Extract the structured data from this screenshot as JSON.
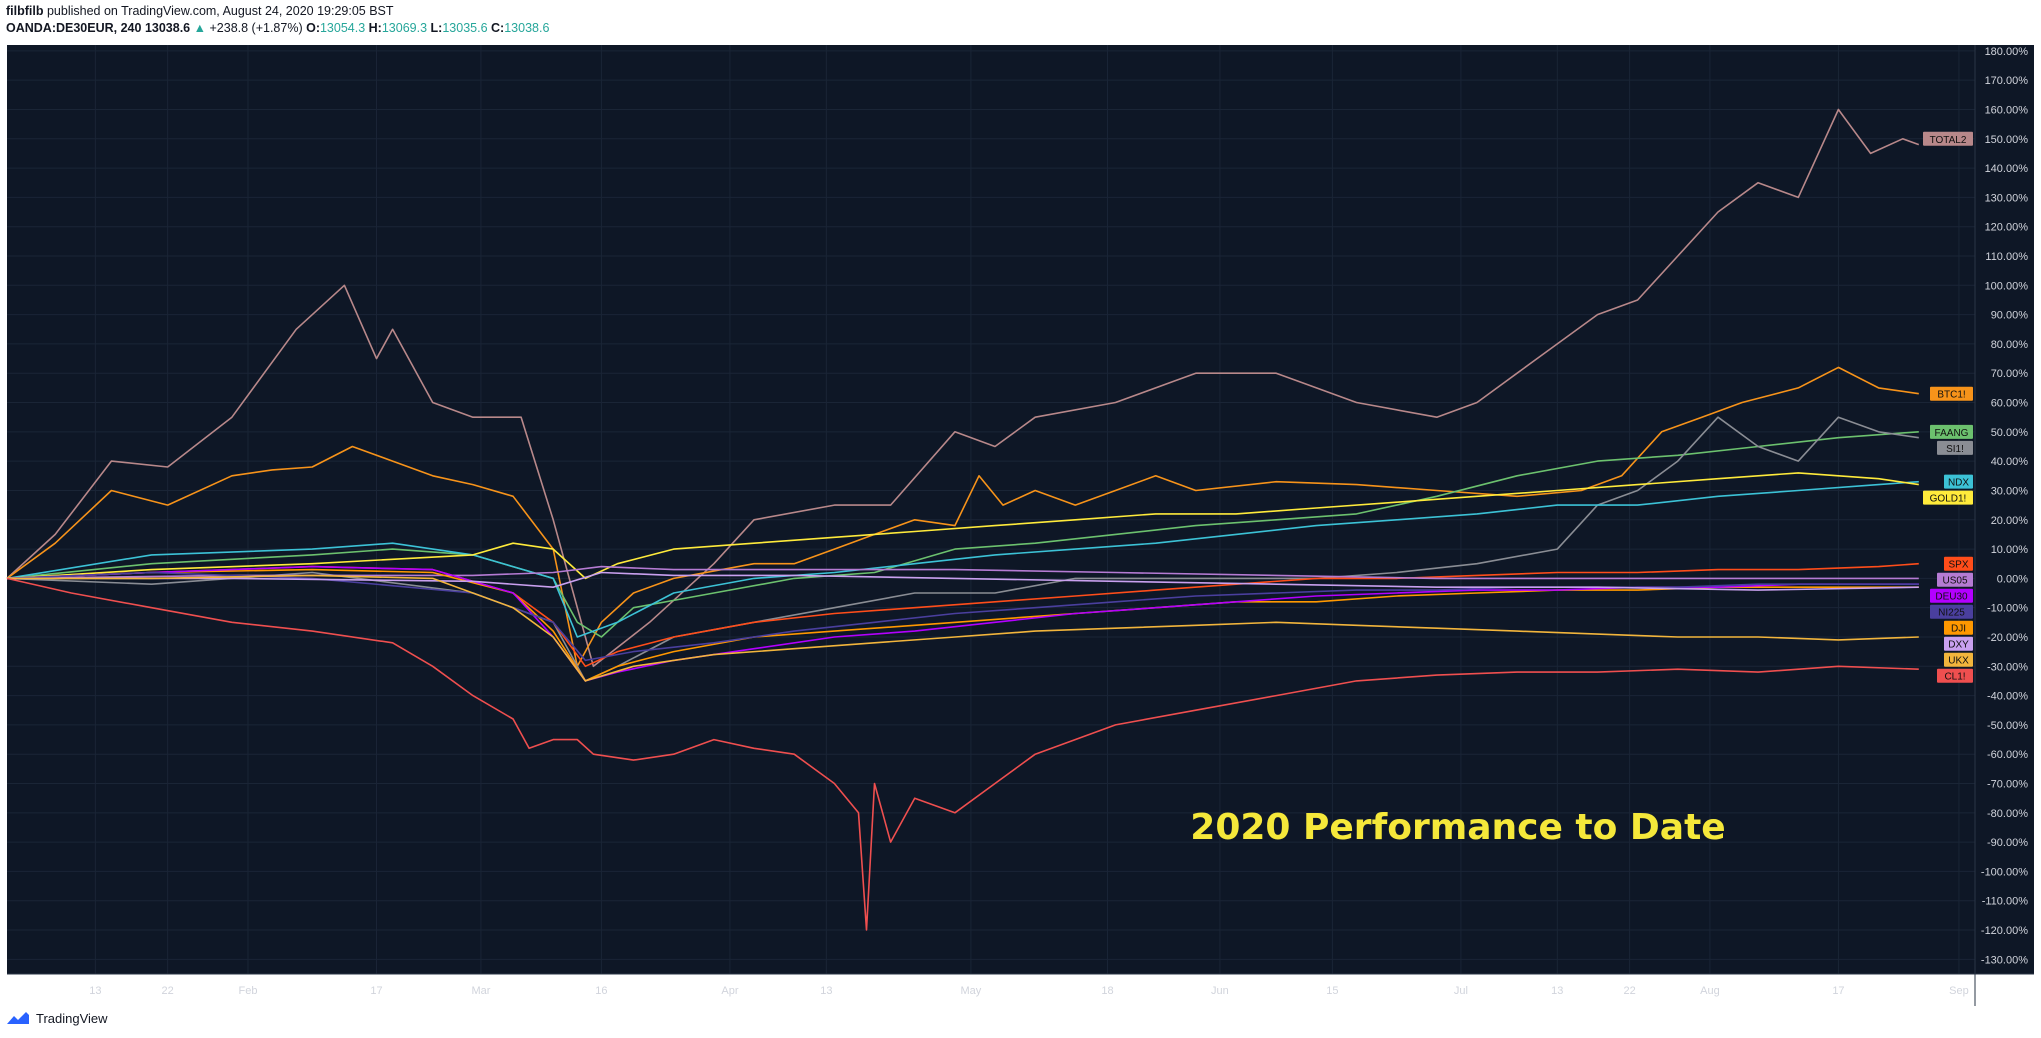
{
  "header": {
    "author": "filbfilb",
    "published_text": "published on TradingView.com, August 24, 2020 19:29:05 BST",
    "symbol": "OANDA:DE30EUR, 240",
    "last": "13038.6",
    "change": "+238.8 (+1.87%)",
    "open_label": "O:",
    "open": "13054.3",
    "high_label": "H:",
    "high": "13069.3",
    "low_label": "L:",
    "low": "13035.6",
    "close_label": "C:",
    "close": "13038.6"
  },
  "footer": {
    "brand": "TradingView"
  },
  "colors": {
    "background": "#0e1726",
    "grid": "#1a2536",
    "axis_text": "#d1d4dc",
    "annotation": "#f5e83a"
  },
  "chart_data": {
    "type": "line",
    "annotation": "2020 Performance to Date",
    "x_ticks": [
      "13",
      "22",
      "Feb",
      "17",
      "Mar",
      "16",
      "Apr",
      "13",
      "May",
      "18",
      "Jun",
      "15",
      "Jul",
      "13",
      "22",
      "Aug",
      "17",
      "Sep"
    ],
    "x_tick_days": [
      13,
      22,
      32,
      48,
      61,
      76,
      92,
      104,
      122,
      139,
      153,
      167,
      183,
      195,
      204,
      214,
      230,
      245
    ],
    "x_range_days": [
      2,
      247
    ],
    "ylim": [
      -135,
      182
    ],
    "y_ticks": [
      180,
      170,
      160,
      150,
      140,
      130,
      120,
      110,
      100,
      90,
      80,
      70,
      60,
      50,
      40,
      30,
      20,
      10,
      0,
      -10,
      -20,
      -30,
      -40,
      -50,
      -60,
      -70,
      -80,
      -90,
      -100,
      -110,
      -120,
      -130
    ],
    "y_unit": "%",
    "series": [
      {
        "name": "TOTAL2",
        "color": "#b8888a",
        "label_value": 150,
        "x": [
          2,
          8,
          15,
          22,
          30,
          38,
          44,
          48,
          50,
          55,
          60,
          66,
          70,
          75,
          82,
          90,
          95,
          105,
          112,
          120,
          125,
          130,
          140,
          150,
          160,
          170,
          180,
          185,
          190,
          195,
          200,
          205,
          210,
          215,
          220,
          225,
          230,
          234,
          238,
          240
        ],
        "y": [
          0,
          15,
          40,
          38,
          55,
          85,
          100,
          75,
          85,
          60,
          55,
          55,
          20,
          -30,
          -15,
          5,
          20,
          25,
          25,
          50,
          45,
          55,
          60,
          70,
          70,
          60,
          55,
          60,
          70,
          80,
          90,
          95,
          110,
          125,
          135,
          130,
          160,
          145,
          150,
          148
        ]
      },
      {
        "name": "BTC1!",
        "color": "#f7931a",
        "label_value": 63,
        "x": [
          2,
          8,
          15,
          22,
          30,
          35,
          40,
          45,
          50,
          55,
          60,
          65,
          70,
          73,
          76,
          80,
          85,
          95,
          100,
          105,
          110,
          115,
          120,
          123,
          126,
          130,
          135,
          140,
          145,
          150,
          160,
          170,
          180,
          190,
          198,
          203,
          208,
          213,
          218,
          225,
          230,
          235,
          240
        ],
        "y": [
          0,
          12,
          30,
          25,
          35,
          37,
          38,
          45,
          40,
          35,
          32,
          28,
          10,
          -30,
          -15,
          -5,
          0,
          5,
          5,
          10,
          15,
          20,
          18,
          35,
          25,
          30,
          25,
          30,
          35,
          30,
          33,
          32,
          30,
          28,
          30,
          35,
          50,
          55,
          60,
          65,
          72,
          65,
          63
        ]
      },
      {
        "name": "FAANG",
        "color": "#6cc16e",
        "label_value": 50,
        "x": [
          2,
          20,
          40,
          50,
          60,
          70,
          73,
          76,
          80,
          90,
          100,
          110,
          120,
          130,
          140,
          150,
          160,
          170,
          180,
          190,
          200,
          210,
          220,
          230,
          240
        ],
        "y": [
          0,
          5,
          8,
          10,
          8,
          0,
          -15,
          -20,
          -10,
          -5,
          0,
          2,
          10,
          12,
          15,
          18,
          20,
          22,
          28,
          35,
          40,
          42,
          45,
          48,
          50
        ]
      },
      {
        "name": "SI1!",
        "color": "#8a8d94",
        "label_value": 47,
        "x": [
          2,
          20,
          40,
          60,
          70,
          74,
          78,
          85,
          95,
          105,
          115,
          125,
          135,
          145,
          155,
          165,
          175,
          185,
          195,
          200,
          205,
          210,
          215,
          220,
          225,
          230,
          235,
          240
        ],
        "y": [
          0,
          -2,
          2,
          -5,
          -15,
          -35,
          -30,
          -20,
          -15,
          -10,
          -5,
          -5,
          0,
          0,
          0,
          0,
          2,
          5,
          10,
          25,
          30,
          40,
          55,
          45,
          40,
          55,
          50,
          48
        ]
      },
      {
        "name": "NDX",
        "color": "#3cc2d6",
        "label_value": 33,
        "x": [
          2,
          20,
          40,
          50,
          60,
          70,
          73,
          78,
          85,
          95,
          105,
          115,
          125,
          135,
          145,
          155,
          165,
          175,
          185,
          195,
          205,
          215,
          225,
          235,
          240
        ],
        "y": [
          0,
          8,
          10,
          12,
          8,
          0,
          -20,
          -15,
          -5,
          0,
          2,
          5,
          8,
          10,
          12,
          15,
          18,
          20,
          22,
          25,
          25,
          28,
          30,
          32,
          33
        ]
      },
      {
        "name": "GOLD1!",
        "color": "#ffeb3b",
        "label_value": 32,
        "x": [
          2,
          20,
          40,
          60,
          65,
          70,
          74,
          78,
          85,
          95,
          105,
          115,
          125,
          135,
          145,
          155,
          165,
          175,
          185,
          195,
          205,
          215,
          225,
          235,
          240
        ],
        "y": [
          0,
          3,
          5,
          8,
          12,
          10,
          0,
          5,
          10,
          12,
          14,
          16,
          18,
          20,
          22,
          22,
          24,
          26,
          28,
          30,
          32,
          34,
          36,
          34,
          32
        ]
      },
      {
        "name": "SPX",
        "color": "#ff4d1a",
        "label_value": 5,
        "x": [
          2,
          20,
          40,
          55,
          65,
          70,
          74,
          78,
          85,
          95,
          105,
          115,
          125,
          135,
          145,
          155,
          165,
          175,
          185,
          195,
          205,
          215,
          225,
          235,
          240
        ],
        "y": [
          0,
          2,
          4,
          3,
          -5,
          -15,
          -30,
          -25,
          -20,
          -15,
          -12,
          -10,
          -8,
          -6,
          -4,
          -2,
          0,
          0,
          1,
          2,
          2,
          3,
          3,
          4,
          5
        ]
      },
      {
        "name": "US05",
        "color": "#b57bd3",
        "label_value": 0,
        "x": [
          2,
          30,
          60,
          70,
          76,
          85,
          100,
          120,
          140,
          160,
          180,
          200,
          220,
          240
        ],
        "y": [
          0,
          1,
          1,
          2,
          4,
          3,
          3,
          3,
          2,
          1,
          0,
          0,
          0,
          0
        ]
      },
      {
        "name": "DJI",
        "color": "#ff9800",
        "label_value": -3,
        "x": [
          2,
          20,
          40,
          55,
          65,
          70,
          74,
          78,
          85,
          95,
          105,
          115,
          125,
          135,
          145,
          155,
          165,
          175,
          185,
          195,
          205,
          215,
          225,
          235,
          240
        ],
        "y": [
          0,
          2,
          3,
          2,
          -5,
          -18,
          -35,
          -30,
          -25,
          -20,
          -18,
          -16,
          -14,
          -12,
          -10,
          -8,
          -8,
          -6,
          -5,
          -4,
          -4,
          -3,
          -3,
          -3,
          -3
        ]
      },
      {
        "name": "DEU30",
        "color": "#b300ff",
        "label_value": -2,
        "x": [
          2,
          20,
          40,
          55,
          65,
          70,
          74,
          78,
          85,
          95,
          105,
          115,
          125,
          135,
          145,
          155,
          165,
          175,
          185,
          195,
          205,
          215,
          225,
          235,
          240
        ],
        "y": [
          0,
          2,
          4,
          3,
          -5,
          -20,
          -35,
          -32,
          -28,
          -24,
          -20,
          -18,
          -15,
          -12,
          -10,
          -8,
          -6,
          -5,
          -4,
          -4,
          -3,
          -3,
          -2,
          -2,
          -2
        ]
      },
      {
        "name": "NI225",
        "color": "#4a3f9e",
        "label_value": -2,
        "x": [
          2,
          20,
          40,
          60,
          70,
          74,
          80,
          90,
          100,
          110,
          120,
          130,
          140,
          150,
          160,
          170,
          180,
          190,
          200,
          210,
          220,
          230,
          240
        ],
        "y": [
          0,
          2,
          0,
          -5,
          -15,
          -28,
          -25,
          -22,
          -18,
          -15,
          -12,
          -10,
          -8,
          -6,
          -5,
          -4,
          -4,
          -3,
          -3,
          -3,
          -2,
          -2,
          -2
        ]
      },
      {
        "name": "DXY",
        "color": "#c9a0ef",
        "label_value": -3,
        "x": [
          2,
          30,
          60,
          70,
          76,
          85,
          100,
          120,
          140,
          160,
          180,
          200,
          220,
          240
        ],
        "y": [
          0,
          0,
          -1,
          -3,
          2,
          1,
          1,
          0,
          -1,
          -2,
          -3,
          -3,
          -4,
          -3
        ]
      },
      {
        "name": "UKX",
        "color": "#f2b53c",
        "label_value": -20,
        "x": [
          2,
          20,
          40,
          55,
          65,
          70,
          74,
          80,
          90,
          100,
          110,
          120,
          130,
          140,
          150,
          160,
          170,
          180,
          190,
          200,
          210,
          220,
          230,
          240
        ],
        "y": [
          0,
          0,
          1,
          0,
          -10,
          -20,
          -35,
          -30,
          -26,
          -24,
          -22,
          -20,
          -18,
          -17,
          -16,
          -15,
          -16,
          -17,
          -18,
          -19,
          -20,
          -20,
          -21,
          -20
        ]
      },
      {
        "name": "CL1!",
        "color": "#ef4f4f",
        "label_value": -31,
        "x": [
          2,
          10,
          20,
          30,
          40,
          50,
          55,
          60,
          65,
          67,
          70,
          73,
          75,
          80,
          85,
          90,
          95,
          100,
          105,
          108,
          109,
          110,
          111,
          112,
          115,
          120,
          125,
          130,
          140,
          150,
          160,
          170,
          180,
          190,
          200,
          210,
          220,
          230,
          240
        ],
        "y": [
          0,
          -5,
          -10,
          -15,
          -18,
          -22,
          -30,
          -40,
          -48,
          -58,
          -55,
          -55,
          -60,
          -62,
          -60,
          -55,
          -58,
          -60,
          -70,
          -80,
          -120,
          -70,
          -80,
          -90,
          -75,
          -80,
          -70,
          -60,
          -50,
          -45,
          -40,
          -35,
          -33,
          -32,
          -32,
          -31,
          -32,
          -30,
          -31
        ]
      }
    ]
  }
}
